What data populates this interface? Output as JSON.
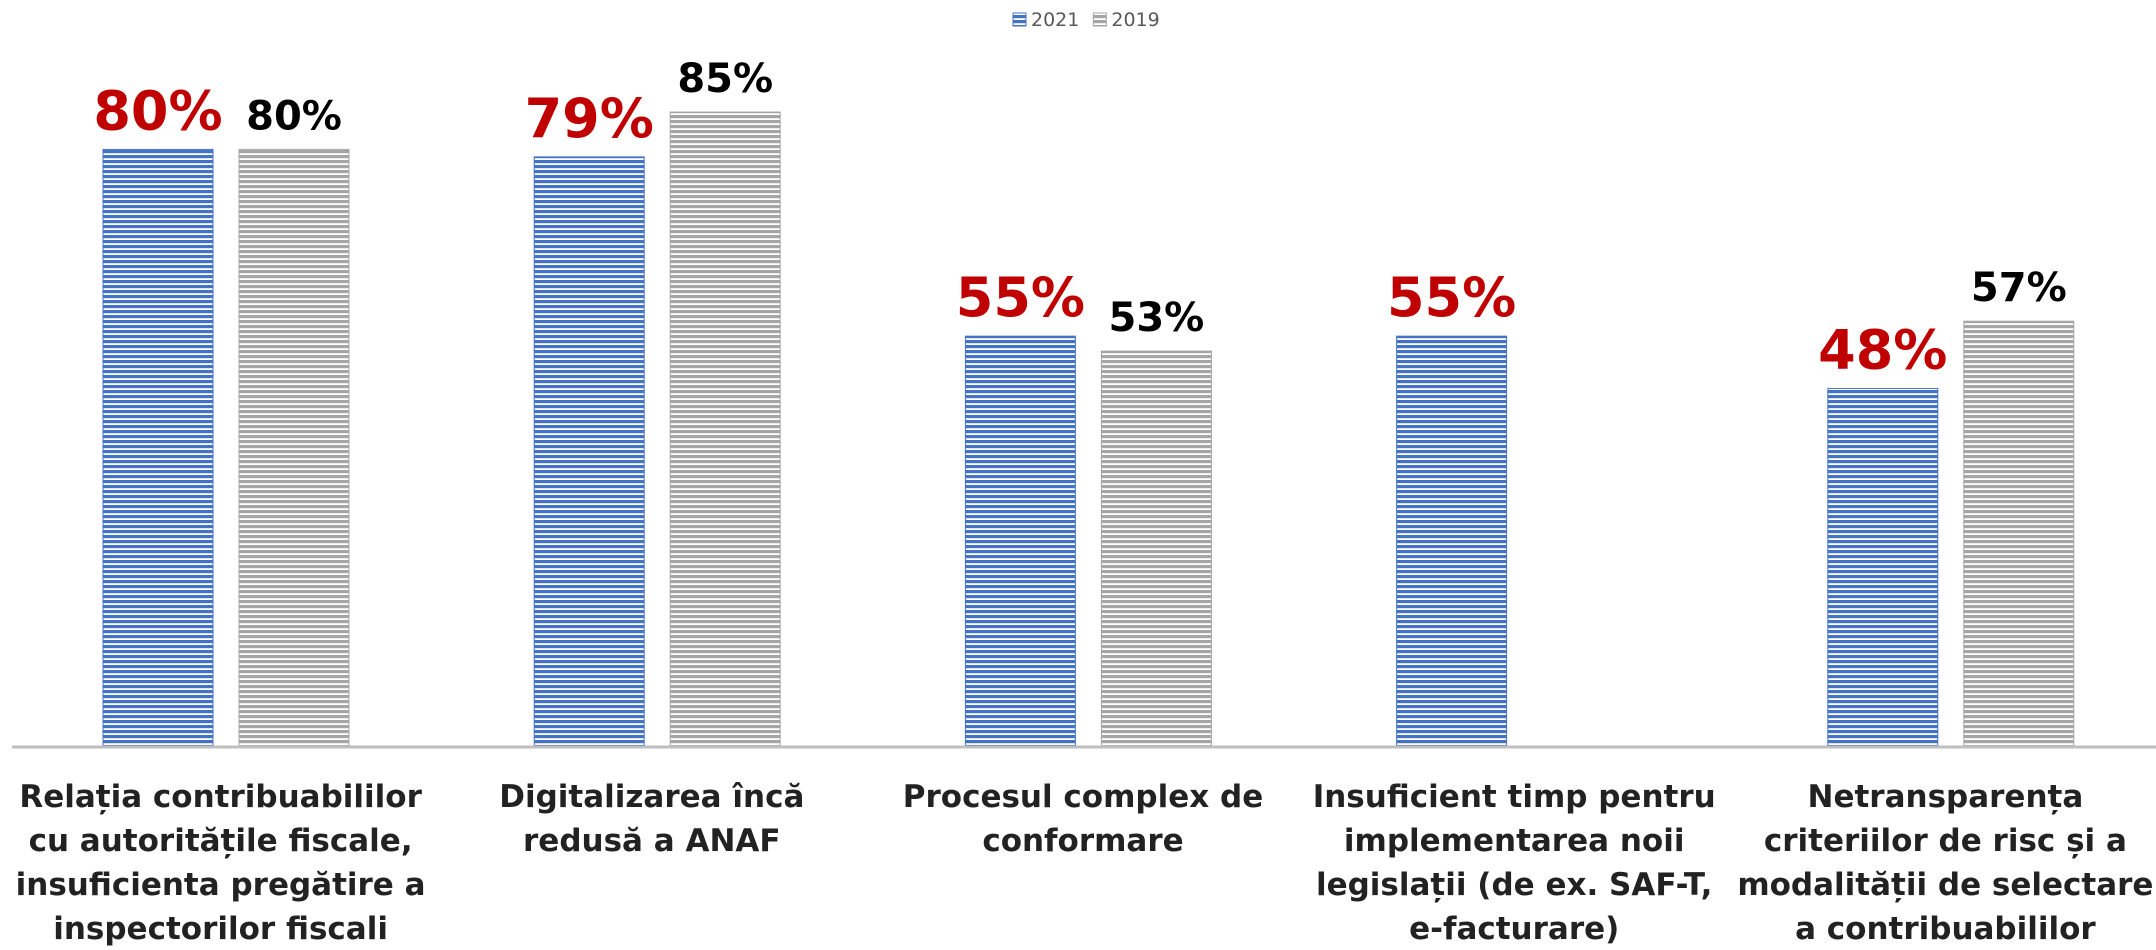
{
  "chart_data": {
    "type": "bar",
    "categories": [
      "Relația contribuabililor cu autoritățile fiscale, insuficienta pregătire a inspectorilor fiscali",
      "Digitalizarea încă redusă a ANAF",
      "Procesul complex de conformare",
      "Insuficient timp pentru implementarea noii legislații (de ex. SAF-T, e-facturare)",
      "Netransparența criteriilor de risc și a modalității de selectare a contribuabililor pentru control"
    ],
    "series": [
      {
        "name": "2021",
        "color": "#4472c4",
        "label_color": "#c00000",
        "values": [
          80,
          79,
          55,
          55,
          48
        ],
        "value_labels": [
          "80%",
          "79%",
          "55%",
          "55%",
          "48%"
        ]
      },
      {
        "name": "2019",
        "color": "#a5a5a5",
        "label_color": "#000000",
        "values": [
          80,
          85,
          53,
          null,
          57
        ],
        "value_labels": [
          "80%",
          "85%",
          "53%",
          null,
          "57%"
        ]
      }
    ],
    "ylim": [
      0,
      100
    ],
    "legend": "top"
  }
}
